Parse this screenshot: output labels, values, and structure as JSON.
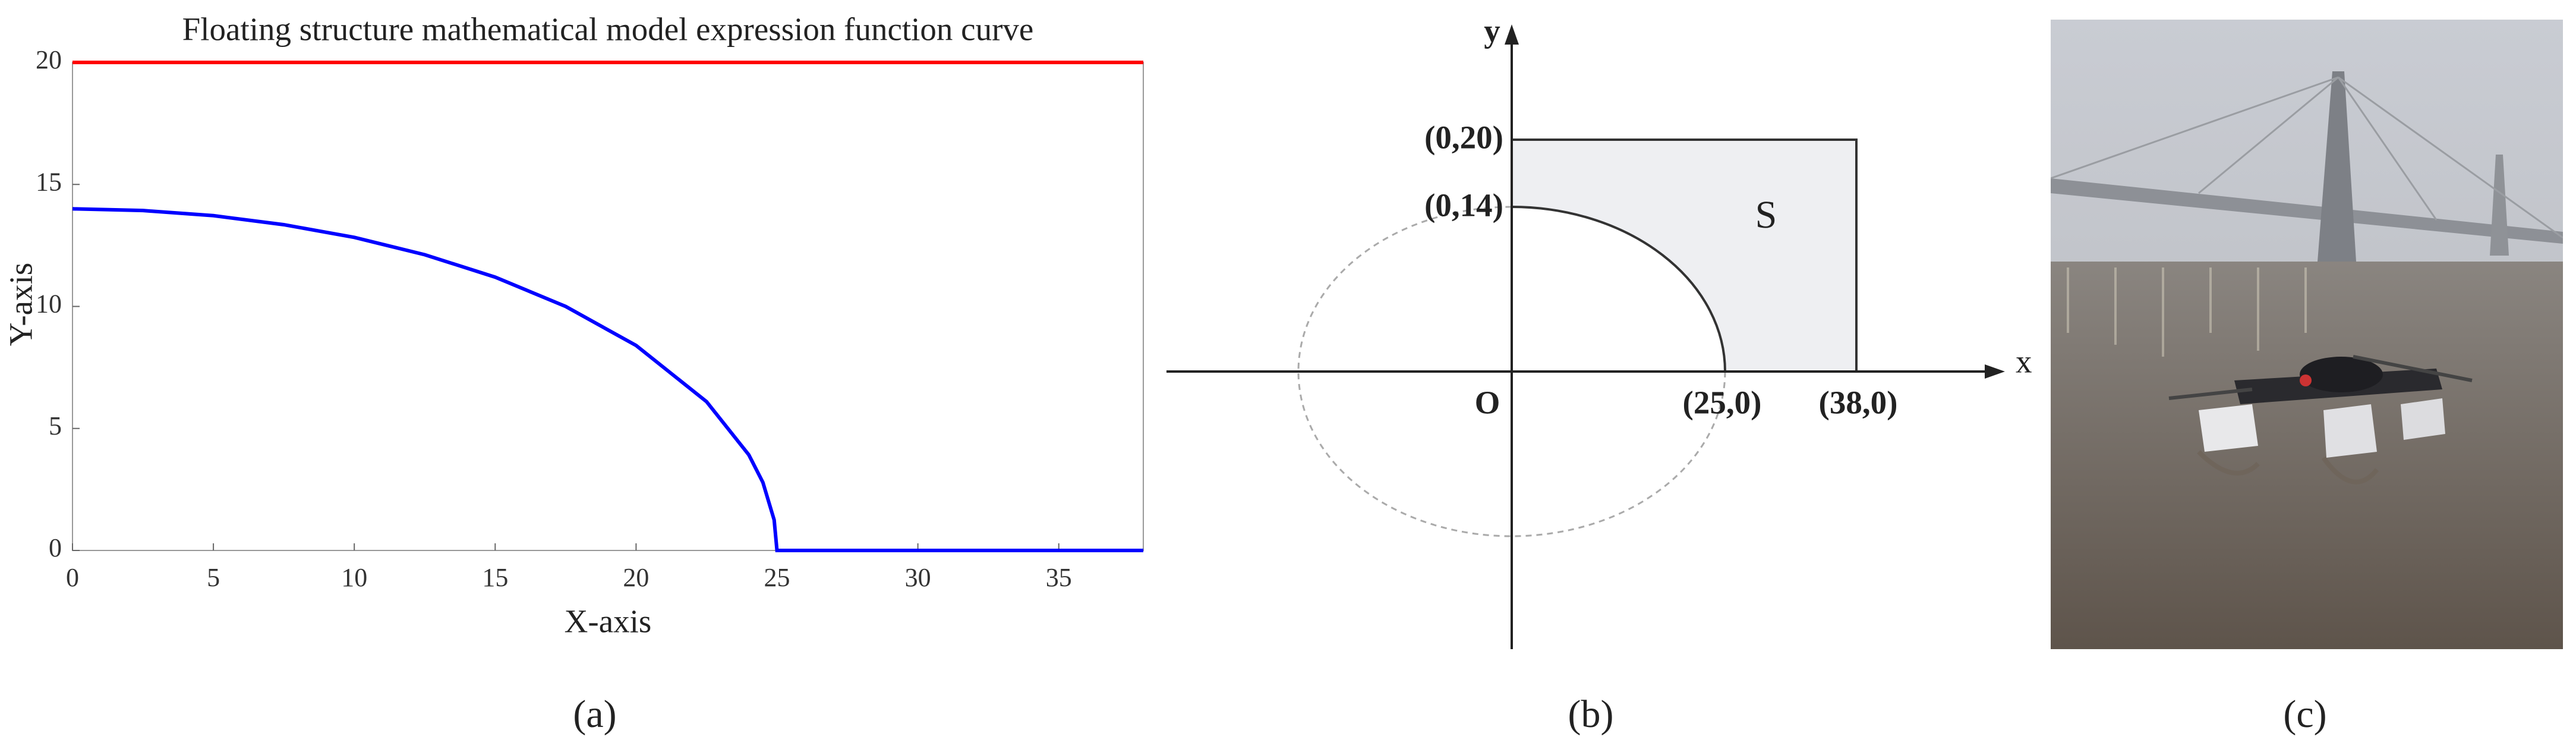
{
  "chart_data": {
    "type": "line",
    "title": "Floating structure mathematical model expression function curve",
    "xlabel": "X-axis",
    "ylabel": "Y-axis",
    "xlim": [
      0,
      38
    ],
    "ylim": [
      0,
      20
    ],
    "xticks": [
      0,
      5,
      10,
      15,
      20,
      25,
      30,
      35
    ],
    "yticks": [
      0,
      5,
      10,
      15,
      20
    ],
    "series": [
      {
        "color": "#0000ff",
        "x": [
          0,
          2.5,
          5,
          7.5,
          10,
          12.5,
          15,
          17.5,
          20,
          22.5,
          24,
          24.5,
          24.9,
          25,
          38
        ],
        "values": [
          14,
          13.93,
          13.72,
          13.35,
          12.83,
          12.12,
          11.2,
          10.0,
          8.4,
          6.1,
          3.92,
          2.79,
          1.25,
          0,
          0
        ]
      },
      {
        "color": "#ff0000",
        "x": [
          0,
          38
        ],
        "values": [
          20,
          20
        ]
      }
    ]
  },
  "diagram": {
    "axis_x": "x",
    "axis_y": "y",
    "origin": "O",
    "point_top": "(0,20)",
    "point_ellipse_top": "(0,14)",
    "region": "S",
    "point_ellipse_right": "(25,0)",
    "point_right": "(38,0)"
  },
  "captions": [
    "(a)",
    "(b)",
    "(c)"
  ]
}
